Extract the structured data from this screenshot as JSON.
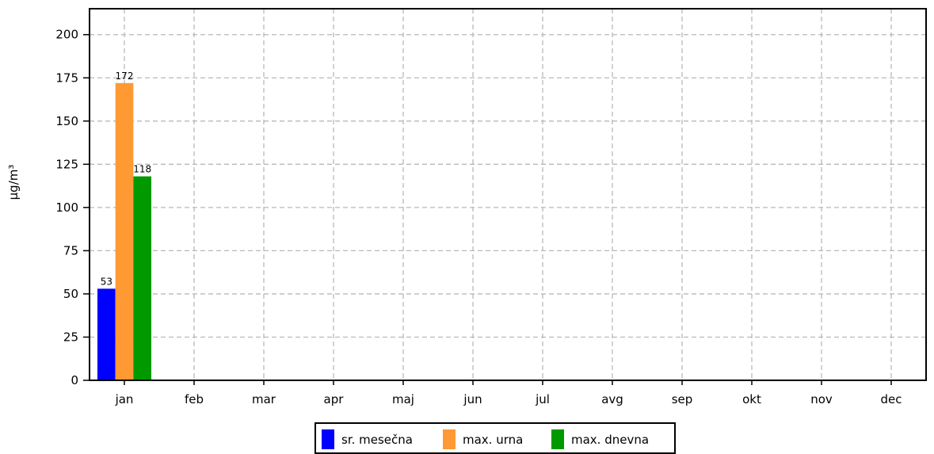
{
  "chart_data": {
    "type": "bar",
    "ylabel": "µg/m³",
    "ylim": [
      0,
      215
    ],
    "yticks": [
      0,
      25,
      50,
      75,
      100,
      125,
      150,
      175,
      200
    ],
    "grid": true,
    "legend_position": "bottom-center",
    "categories": [
      "jan",
      "feb",
      "mar",
      "apr",
      "maj",
      "jun",
      "jul",
      "avg",
      "sep",
      "okt",
      "nov",
      "dec"
    ],
    "series": [
      {
        "name": "sr. mesečna",
        "color": "#0000ff",
        "values": [
          53,
          null,
          null,
          null,
          null,
          null,
          null,
          null,
          null,
          null,
          null,
          null
        ]
      },
      {
        "name": "max. urna",
        "color": "#ff9933",
        "values": [
          172,
          null,
          null,
          null,
          null,
          null,
          null,
          null,
          null,
          null,
          null,
          null
        ]
      },
      {
        "name": "max. dnevna",
        "color": "#009900",
        "values": [
          118,
          null,
          null,
          null,
          null,
          null,
          null,
          null,
          null,
          null,
          null,
          null
        ]
      }
    ]
  }
}
